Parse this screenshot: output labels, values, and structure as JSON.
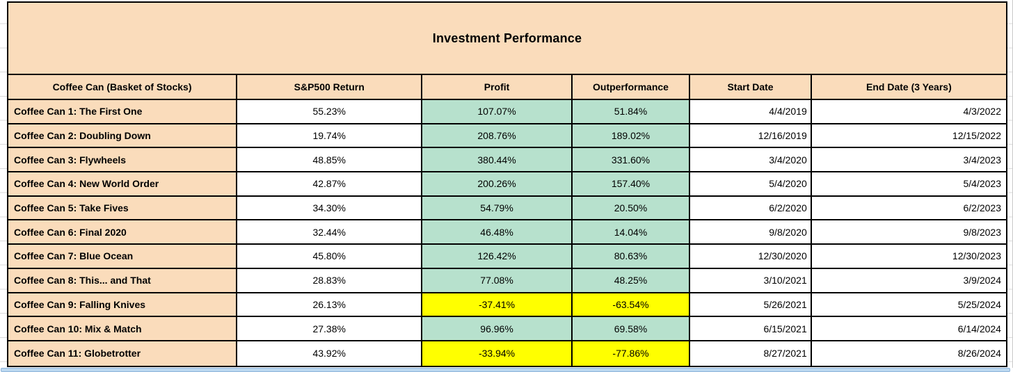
{
  "title": "Investment Performance",
  "table": {
    "columns": [
      "Coffee Can (Basket of Stocks)",
      "S&P500 Return",
      "Profit",
      "Outperformance",
      "Start Date",
      "End Date (3 Years)"
    ],
    "rows": [
      {
        "name": "Coffee Can 1: The First One",
        "sp500": "55.23%",
        "profit": "107.07%",
        "outperf": "51.84%",
        "start": "4/4/2019",
        "end": "4/3/2022",
        "state": "positive"
      },
      {
        "name": "Coffee Can 2: Doubling Down",
        "sp500": "19.74%",
        "profit": "208.76%",
        "outperf": "189.02%",
        "start": "12/16/2019",
        "end": "12/15/2022",
        "state": "positive"
      },
      {
        "name": "Coffee Can 3: Flywheels",
        "sp500": "48.85%",
        "profit": "380.44%",
        "outperf": "331.60%",
        "start": "3/4/2020",
        "end": "3/4/2023",
        "state": "positive"
      },
      {
        "name": "Coffee Can 4: New World Order",
        "sp500": "42.87%",
        "profit": "200.26%",
        "outperf": "157.40%",
        "start": "5/4/2020",
        "end": "5/4/2023",
        "state": "positive"
      },
      {
        "name": "Coffee Can 5: Take Fives",
        "sp500": "34.30%",
        "profit": "54.79%",
        "outperf": "20.50%",
        "start": "6/2/2020",
        "end": "6/2/2023",
        "state": "positive"
      },
      {
        "name": "Coffee Can 6: Final 2020",
        "sp500": "32.44%",
        "profit": "46.48%",
        "outperf": "14.04%",
        "start": "9/8/2020",
        "end": "9/8/2023",
        "state": "positive"
      },
      {
        "name": "Coffee Can 7: Blue Ocean",
        "sp500": "45.80%",
        "profit": "126.42%",
        "outperf": "80.63%",
        "start": "12/30/2020",
        "end": "12/30/2023",
        "state": "positive"
      },
      {
        "name": "Coffee Can 8: This... and That",
        "sp500": "28.83%",
        "profit": "77.08%",
        "outperf": "48.25%",
        "start": "3/10/2021",
        "end": "3/9/2024",
        "state": "positive"
      },
      {
        "name": "Coffee Can 9: Falling Knives",
        "sp500": "26.13%",
        "profit": "-37.41%",
        "outperf": "-63.54%",
        "start": "5/26/2021",
        "end": "5/25/2024",
        "state": "negative"
      },
      {
        "name": "Coffee Can 10: Mix & Match",
        "sp500": "27.38%",
        "profit": "96.96%",
        "outperf": "69.58%",
        "start": "6/15/2021",
        "end": "6/14/2024",
        "state": "positive"
      },
      {
        "name": "Coffee Can 11: Globetrotter",
        "sp500": "43.92%",
        "profit": "-33.94%",
        "outperf": "-77.86%",
        "start": "8/27/2021",
        "end": "8/26/2024",
        "state": "negative"
      }
    ]
  },
  "colors": {
    "header_fill": "#FADCBB",
    "positive_fill": "#B7E1CD",
    "negative_fill": "#FFFF00",
    "cell_fill": "#FFFFFF",
    "border": "#000000",
    "scrollbar_fill": "#BCD8F0",
    "scrollbar_border": "#8FB5DA"
  }
}
